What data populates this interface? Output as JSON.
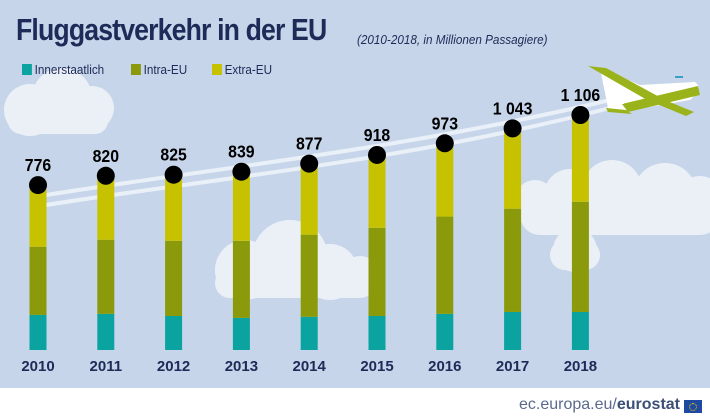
{
  "header": {
    "title": "Fluggastverkehr in der EU",
    "subtitle": "(2010-2018, in Millionen Passagiere)"
  },
  "legend": [
    {
      "label": "Innerstaatlich",
      "color": "#0aa3a0"
    },
    {
      "label": "Intra-EU",
      "color": "#8a9a0a"
    },
    {
      "label": "Extra-EU",
      "color": "#c7c200"
    }
  ],
  "footer": {
    "prefix": "ec.europa.eu/",
    "brand": "eurostat"
  },
  "chart_data": {
    "type": "bar",
    "stacked": true,
    "title": "Fluggastverkehr in der EU",
    "subtitle": "(2010-2018, in Millionen Passagiere)",
    "xlabel": "",
    "ylabel": "Millionen Passagiere",
    "ylim": [
      0,
      1200
    ],
    "grid": false,
    "legend_position": "top-left",
    "categories": [
      "2010",
      "2011",
      "2012",
      "2013",
      "2014",
      "2015",
      "2016",
      "2017",
      "2018"
    ],
    "series": [
      {
        "name": "Innerstaatlich",
        "color": "#0aa3a0",
        "values": [
          165,
          170,
          160,
          151,
          156,
          160,
          170,
          179,
          179
        ]
      },
      {
        "name": "Intra-EU",
        "color": "#8a9a0a",
        "values": [
          321,
          349,
          354,
          363,
          387,
          415,
          458,
          486,
          519
        ]
      },
      {
        "name": "Extra-EU",
        "color": "#c7c200",
        "values": [
          290,
          301,
          311,
          325,
          334,
          343,
          345,
          378,
          408
        ]
      }
    ],
    "totals": [
      776,
      820,
      825,
      839,
      877,
      918,
      973,
      1043,
      1106
    ],
    "total_labels": [
      "776",
      "820",
      "825",
      "839",
      "877",
      "918",
      "973",
      "1 043",
      "1 106"
    ]
  }
}
